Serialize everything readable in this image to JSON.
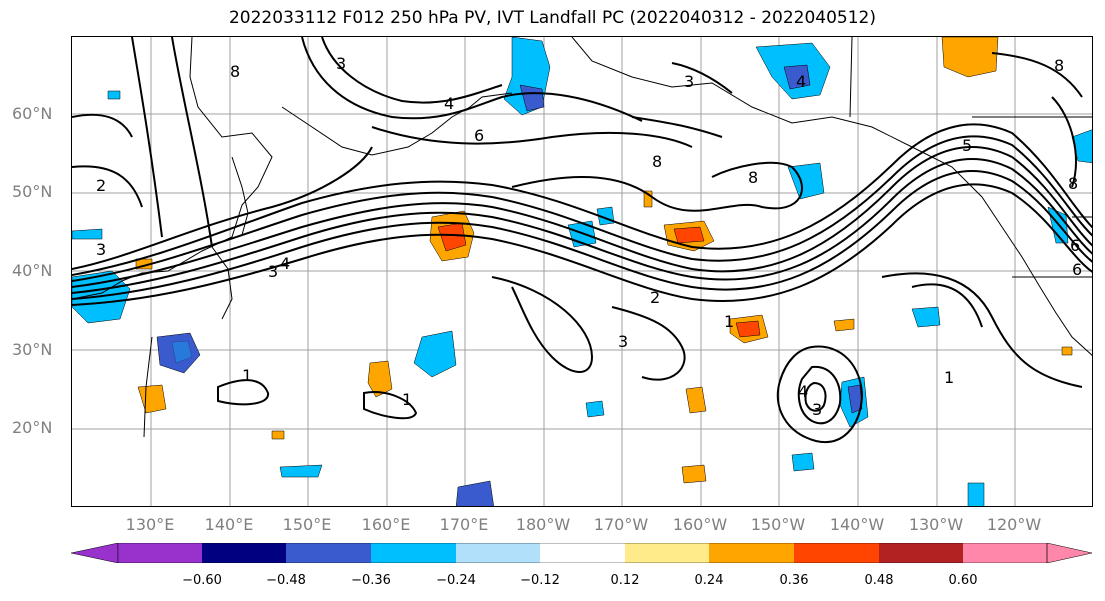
{
  "title": "2022033112 F012 250 hPa PV, IVT Landfall PC (2022040312 - 2022040512)",
  "lat_labels": [
    "60°N",
    "50°N",
    "40°N",
    "30°N",
    "20°N"
  ],
  "lon_labels": [
    "130°E",
    "140°E",
    "150°E",
    "160°E",
    "170°E",
    "180°W",
    "170°W",
    "160°W",
    "150°W",
    "140°W",
    "130°W",
    "120°W"
  ],
  "colorbar": {
    "ticks": [
      "−0.60",
      "−0.48",
      "−0.36",
      "−0.24",
      "−0.12",
      "0.12",
      "0.24",
      "0.36",
      "0.48",
      "0.60"
    ],
    "colors": [
      "#9932cc",
      "#000080",
      "#3a5bcd",
      "#00bfff",
      "#b0e0fa",
      "#ffffff",
      "#ffeb8a",
      "#ffa500",
      "#ff4500",
      "#b22222",
      "#ff88aa"
    ]
  },
  "contour_labels": [
    "8",
    "3",
    "4",
    "6",
    "2",
    "3",
    "3",
    "4",
    "8",
    "4",
    "8",
    "3",
    "2",
    "3",
    "1",
    "1",
    "1",
    "8",
    "5",
    "6",
    "1",
    "6",
    "8",
    "4",
    "3"
  ]
}
